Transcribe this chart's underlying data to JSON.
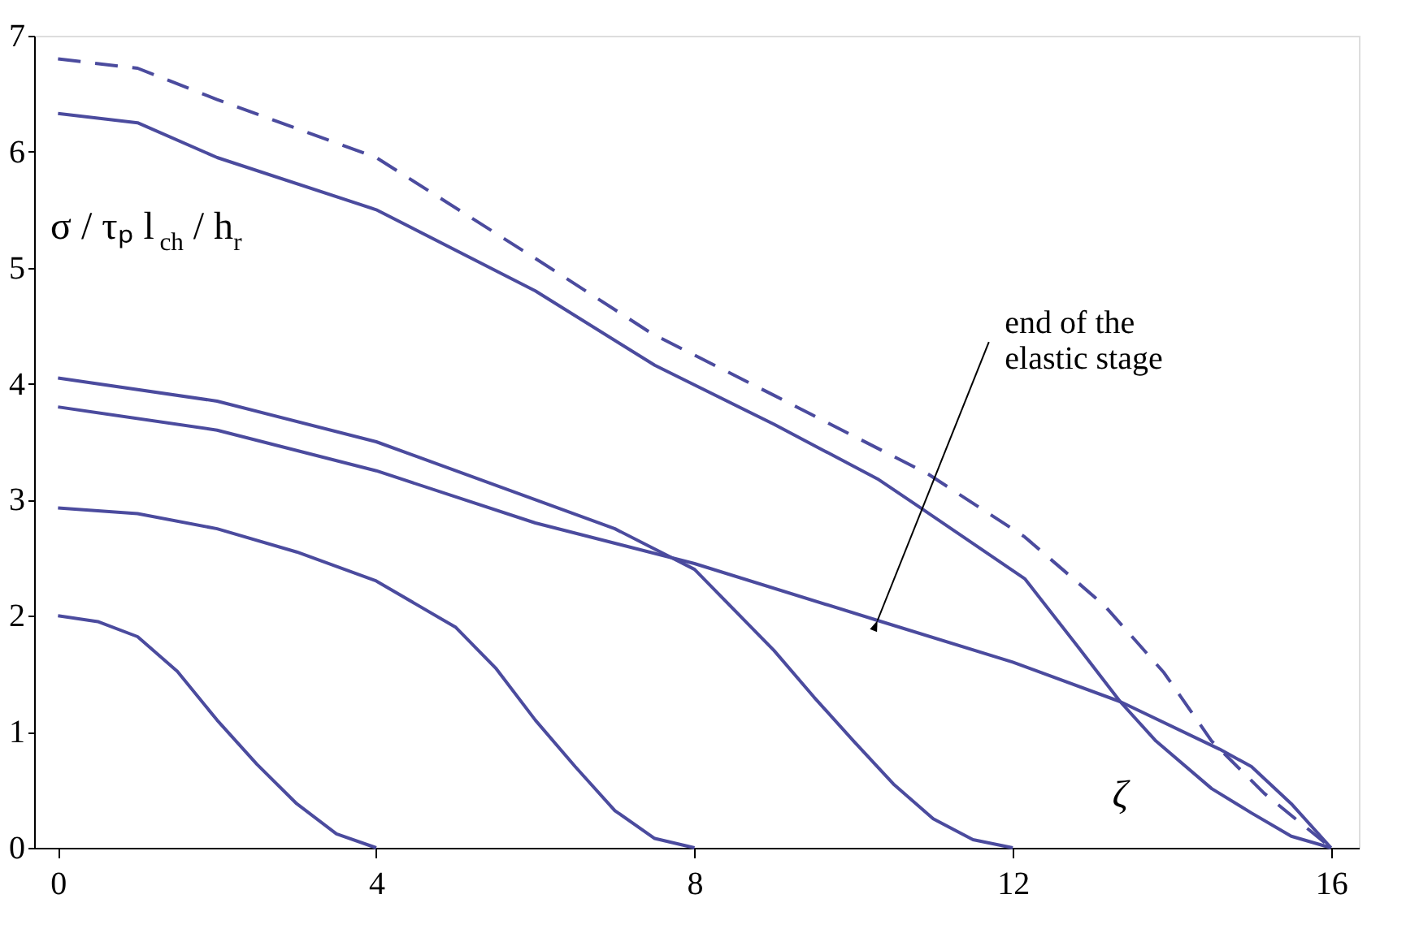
{
  "chart_data": {
    "type": "line",
    "xlabel": "ζ",
    "ylabel": "σ / τₚ l$_{ch}$ / h$_{r}$",
    "xlim": [
      -0.3,
      16.35
    ],
    "ylim": [
      0,
      7
    ],
    "xticks": [
      0,
      4,
      8,
      12,
      16
    ],
    "yticks": [
      0,
      1,
      2,
      3,
      4,
      5,
      6,
      7
    ],
    "grid": false,
    "marker": "none",
    "annotations": [
      {
        "text": "end of the\nelastic stage",
        "x": 10.3,
        "y": 1.96
      }
    ],
    "series": [
      {
        "color": "#4b4b9e",
        "line_style": "dashed",
        "x": [
          0,
          1,
          2,
          4,
          6,
          7.47,
          9,
          10.94,
          12.15,
          13.15,
          13.9,
          14.5,
          15.16,
          16
        ],
        "values": [
          6.8,
          6.72,
          6.45,
          5.95,
          5.08,
          4.43,
          3.9,
          3.22,
          2.68,
          2.09,
          1.51,
          0.92,
          0.47,
          0
        ]
      },
      {
        "color": "#4b4b9e",
        "line_style": "solid",
        "x": [
          0,
          1,
          2,
          4,
          6,
          7.5,
          9,
          10.3,
          10.8,
          12.15,
          12.8,
          13.35,
          13.8,
          14.5,
          15,
          15.5,
          16
        ],
        "values": [
          6.33,
          6.25,
          5.95,
          5.5,
          4.8,
          4.16,
          3.65,
          3.18,
          2.95,
          2.32,
          1.75,
          1.26,
          0.92,
          0.51,
          0.3,
          0.1,
          0
        ]
      },
      {
        "color": "#4b4b9e",
        "line_style": "solid",
        "x": [
          0,
          2,
          4,
          6,
          7,
          8,
          9,
          9.5,
          10,
          10.5,
          11,
          11.5,
          12
        ],
        "values": [
          4.05,
          3.85,
          3.5,
          3.0,
          2.75,
          2.4,
          1.7,
          1.3,
          0.92,
          0.55,
          0.25,
          0.07,
          0
        ]
      },
      {
        "color": "#4b4b9e",
        "line_style": "solid",
        "x": [
          0,
          2,
          4,
          6,
          8,
          10.3,
          12,
          13.35,
          14.6,
          15,
          15.5,
          16
        ],
        "values": [
          3.8,
          3.6,
          3.25,
          2.8,
          2.45,
          1.96,
          1.6,
          1.26,
          0.85,
          0.7,
          0.38,
          0
        ]
      },
      {
        "color": "#4b4b9e",
        "line_style": "solid",
        "x": [
          0,
          1,
          2,
          3,
          4,
          5,
          5.5,
          6,
          6.5,
          7,
          7.5,
          8
        ],
        "values": [
          2.93,
          2.88,
          2.75,
          2.55,
          2.3,
          1.9,
          1.55,
          1.1,
          0.7,
          0.32,
          0.08,
          0
        ]
      },
      {
        "color": "#4b4b9e",
        "line_style": "solid",
        "x": [
          0,
          0.5,
          1,
          1.5,
          2,
          2.5,
          3,
          3.5,
          4
        ],
        "values": [
          2.0,
          1.95,
          1.82,
          1.52,
          1.1,
          0.72,
          0.38,
          0.12,
          0
        ]
      }
    ]
  }
}
